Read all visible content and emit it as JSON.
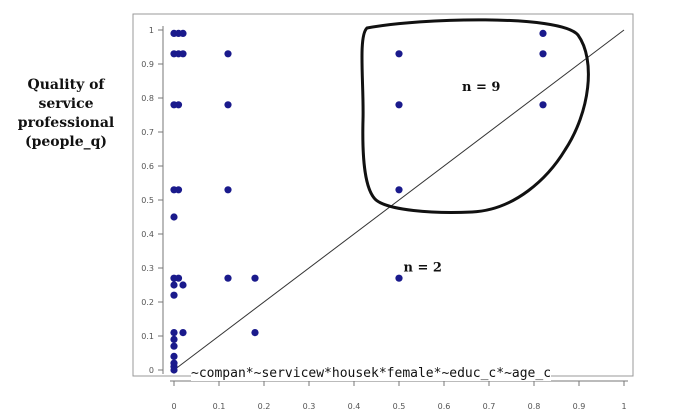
{
  "chart_data": {
    "type": "scatter",
    "ylabel_lines": [
      "Quality of",
      "service",
      "professional",
      "(people_q)"
    ],
    "xlabel": "~compan*~servicew*housek*female*~educ_c*~age_c",
    "xlim": [
      0,
      1
    ],
    "ylim": [
      0,
      1
    ],
    "xticks": [
      "0",
      "0.1",
      "0.2",
      "0.3",
      "0.4",
      "0.5",
      "0.6",
      "0.7",
      "0.8",
      "0.9",
      "1"
    ],
    "yticks": [
      "0",
      "0.1",
      "0.2",
      "0.3",
      "0.4",
      "0.5",
      "0.6",
      "0.7",
      "0.8",
      "0.9",
      "1"
    ],
    "diagonal": true,
    "grid": false,
    "marker_color": "#1a1a8c",
    "annotations": [
      {
        "text": "n = 9",
        "x": 0.64,
        "y": 0.82
      },
      {
        "text": "n = 2",
        "x": 0.51,
        "y": 0.29
      }
    ],
    "points": [
      {
        "x": 0.0,
        "y": 0.99
      },
      {
        "x": 0.01,
        "y": 0.99
      },
      {
        "x": 0.02,
        "y": 0.99
      },
      {
        "x": 0.0,
        "y": 0.93
      },
      {
        "x": 0.01,
        "y": 0.93
      },
      {
        "x": 0.02,
        "y": 0.93
      },
      {
        "x": 0.12,
        "y": 0.93
      },
      {
        "x": 0.0,
        "y": 0.78
      },
      {
        "x": 0.01,
        "y": 0.78
      },
      {
        "x": 0.12,
        "y": 0.78
      },
      {
        "x": 0.0,
        "y": 0.53
      },
      {
        "x": 0.01,
        "y": 0.53
      },
      {
        "x": 0.12,
        "y": 0.53
      },
      {
        "x": 0.0,
        "y": 0.45
      },
      {
        "x": 0.0,
        "y": 0.27
      },
      {
        "x": 0.01,
        "y": 0.27
      },
      {
        "x": 0.12,
        "y": 0.27
      },
      {
        "x": 0.18,
        "y": 0.27
      },
      {
        "x": 0.0,
        "y": 0.25
      },
      {
        "x": 0.02,
        "y": 0.25
      },
      {
        "x": 0.0,
        "y": 0.22
      },
      {
        "x": 0.0,
        "y": 0.11
      },
      {
        "x": 0.02,
        "y": 0.11
      },
      {
        "x": 0.18,
        "y": 0.11
      },
      {
        "x": 0.0,
        "y": 0.09
      },
      {
        "x": 0.0,
        "y": 0.07
      },
      {
        "x": 0.0,
        "y": 0.04
      },
      {
        "x": 0.0,
        "y": 0.02
      },
      {
        "x": 0.0,
        "y": 0.01
      },
      {
        "x": 0.0,
        "y": 0.0
      },
      {
        "x": 0.5,
        "y": 0.93
      },
      {
        "x": 0.5,
        "y": 0.78
      },
      {
        "x": 0.5,
        "y": 0.53
      },
      {
        "x": 0.5,
        "y": 0.27
      },
      {
        "x": 0.82,
        "y": 0.99
      },
      {
        "x": 0.82,
        "y": 0.93
      },
      {
        "x": 0.82,
        "y": 0.78
      }
    ]
  }
}
